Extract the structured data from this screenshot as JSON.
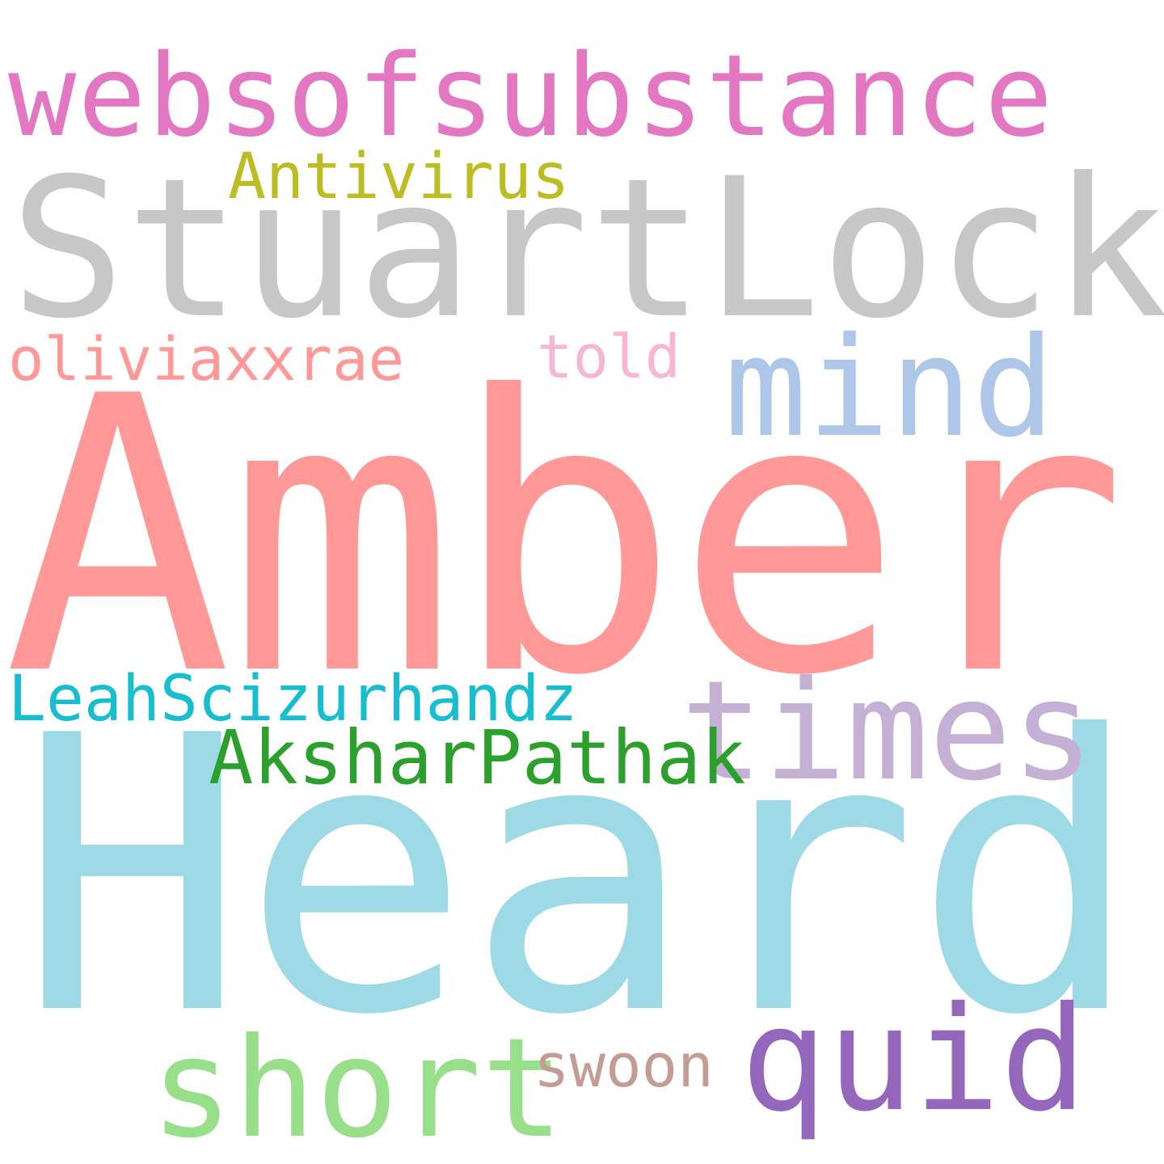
{
  "words": [
    {
      "key": "websofsubstance",
      "text": "websofsubstance",
      "color": "#e377c2"
    },
    {
      "key": "stuartlock",
      "text": "StuartLock",
      "color": "#c7c7c7"
    },
    {
      "key": "antivirus",
      "text": "Antivirus",
      "color": "#bcbd22"
    },
    {
      "key": "mind",
      "text": "mind",
      "color": "#aec7e8"
    },
    {
      "key": "oliviaxxrae",
      "text": "oliviaxxrae",
      "color": "#ff9896"
    },
    {
      "key": "told",
      "text": "told",
      "color": "#f7b6d2"
    },
    {
      "key": "amber",
      "text": "Amber",
      "color": "#ff9896"
    },
    {
      "key": "times",
      "text": "times",
      "color": "#c5b0d5"
    },
    {
      "key": "leah",
      "text": "LeahScizurhandz",
      "color": "#17becf"
    },
    {
      "key": "akshar",
      "text": "AksharPathak",
      "color": "#2ca02c"
    },
    {
      "key": "heard",
      "text": "Heard",
      "color": "#9edae5"
    },
    {
      "key": "short",
      "text": "short",
      "color": "#98df8a"
    },
    {
      "key": "swoon",
      "text": "swoon",
      "color": "#c49c94"
    },
    {
      "key": "quid",
      "text": "quid",
      "color": "#9467bd"
    }
  ]
}
